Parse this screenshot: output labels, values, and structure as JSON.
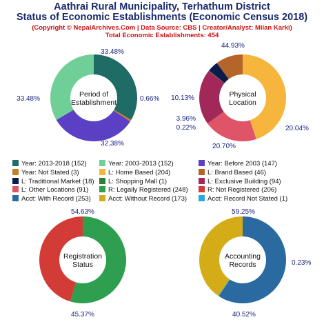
{
  "header": {
    "title_line1": "Aathrai Rural Municipality, Terhathum District",
    "title_line2": "Status of Economic Establishments (Economic Census 2018)",
    "subtitle_line1": "(Copyright © NepalArchives.Com | Data Source: CBS | Creator/Analyst: Milan Karki)",
    "subtitle_line2": "Total Economic Establishments: 454"
  },
  "chart_data": [
    {
      "type": "pie",
      "center_label": [
        "Period of",
        "Establishment"
      ],
      "slices": [
        {
          "label": "Year: 2013-2018",
          "value": 152,
          "percent_label": "33.48%",
          "color": "#1f6b66"
        },
        {
          "label": "Year: Not Stated",
          "value": 3,
          "percent_label": "0.66%",
          "color": "#c97c2a"
        },
        {
          "label": "Year: Before 2003",
          "value": 147,
          "percent_label": "32.38%",
          "color": "#5b3fc4"
        },
        {
          "label": "Year: 2003-2013",
          "value": 152,
          "percent_label": "33.48%",
          "color": "#6fcf97"
        }
      ]
    },
    {
      "type": "pie",
      "center_label": [
        "Physical",
        "Location"
      ],
      "slices": [
        {
          "label": "L: Home Based",
          "value": 204,
          "percent_label": "44.93%",
          "color": "#f6b53d"
        },
        {
          "label": "L: Other Locations",
          "value": 91,
          "percent_label": "20.04%",
          "color": "#e05468"
        },
        {
          "label": "L: Exclusive Building",
          "value": 94,
          "percent_label": "20.70%",
          "color": "#a3285a"
        },
        {
          "label": "L: Shopping Mall",
          "value": 1,
          "percent_label": "0.22%",
          "color": "#2e7d32"
        },
        {
          "label": "L: Traditional Market",
          "value": 18,
          "percent_label": "3.96%",
          "color": "#0b1a4a"
        },
        {
          "label": "L: Brand Based",
          "value": 46,
          "percent_label": "10.13%",
          "color": "#b5652a"
        }
      ]
    },
    {
      "type": "pie",
      "center_label": [
        "Registration",
        "Status"
      ],
      "slices": [
        {
          "label": "R: Legally Registered",
          "value": 248,
          "percent_label": "54.63%",
          "color": "#2e9e4f"
        },
        {
          "label": "R: Not Registered",
          "value": 206,
          "percent_label": "45.37%",
          "color": "#d33b36"
        }
      ]
    },
    {
      "type": "pie",
      "center_label": [
        "Accounting",
        "Records"
      ],
      "slices": [
        {
          "label": "Acct: With Record",
          "value": 253,
          "percent_label": "59.25%",
          "color": "#2a6aa0"
        },
        {
          "label": "Acct: Record Not Stated",
          "value": 1,
          "percent_label": "0.23%",
          "color": "#29a9e0"
        },
        {
          "label": "Acct: Without Record",
          "value": 173,
          "percent_label": "40.52%",
          "color": "#d4ac18"
        }
      ]
    }
  ],
  "legend": [
    {
      "text": "Year: 2013-2018 (152)",
      "color": "#1f6b66"
    },
    {
      "text": "Year: 2003-2013 (152)",
      "color": "#6fcf97"
    },
    {
      "text": "Year: Before 2003 (147)",
      "color": "#5b3fc4"
    },
    {
      "text": "Year: Not Stated (3)",
      "color": "#c97c2a"
    },
    {
      "text": "L: Home Based (204)",
      "color": "#f6b53d"
    },
    {
      "text": "L: Brand Based (46)",
      "color": "#b5652a"
    },
    {
      "text": "L: Traditional Market (18)",
      "color": "#0b1a4a"
    },
    {
      "text": "L: Shopping Mall (1)",
      "color": "#2e7d32"
    },
    {
      "text": "L: Exclusive Building (94)",
      "color": "#a3285a"
    },
    {
      "text": "L: Other Locations (91)",
      "color": "#e05468"
    },
    {
      "text": "R: Legally Registered (248)",
      "color": "#2e9e4f"
    },
    {
      "text": "R: Not Registered (206)",
      "color": "#d33b36"
    },
    {
      "text": "Acct: With Record (253)",
      "color": "#2a6aa0"
    },
    {
      "text": "Acct: Without Record (173)",
      "color": "#d4ac18"
    },
    {
      "text": "Acct: Record Not Stated (1)",
      "color": "#29a9e0"
    }
  ]
}
